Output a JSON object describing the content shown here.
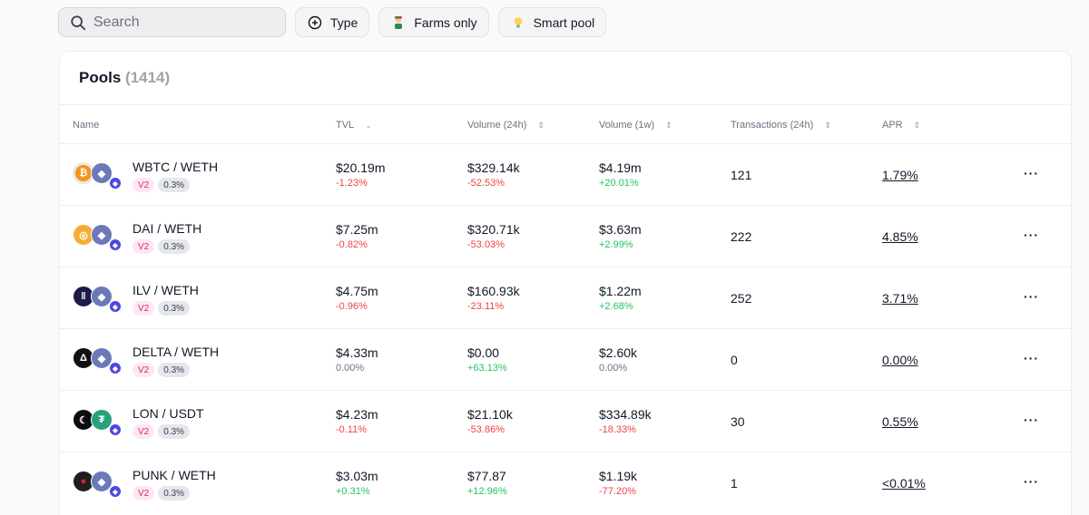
{
  "search": {
    "placeholder": "Search",
    "value": ""
  },
  "filters": [
    {
      "label": "Type",
      "icon": "plus-circle-icon"
    },
    {
      "label": "Farms only",
      "icon": "farmer-icon"
    },
    {
      "label": "Smart pool",
      "icon": "lightbulb-icon"
    }
  ],
  "pools": {
    "title": "Pools",
    "count": "(1414)",
    "columns": {
      "name": "Name",
      "tvl": "TVL",
      "vol24": "Volume (24h)",
      "vol1w": "Volume (1w)",
      "tx": "Transactions (24h)",
      "apr": "APR"
    },
    "rows": [
      {
        "name": "WBTC / WETH",
        "version": "V2",
        "fee": "0.3%",
        "token_a_icon": "wbtc-icon",
        "tvl": "$20.19m",
        "tvl_change": "-1.23%",
        "vol24": "$329.14k",
        "vol24_change": "-52.53%",
        "vol1w": "$4.19m",
        "vol1w_change": "+20.01%",
        "tx": "121",
        "apr": "1.79%"
      },
      {
        "name": "DAI / WETH",
        "version": "V2",
        "fee": "0.3%",
        "token_a_icon": "dai-icon",
        "tvl": "$7.25m",
        "tvl_change": "-0.82%",
        "vol24": "$320.71k",
        "vol24_change": "-53.03%",
        "vol1w": "$3.63m",
        "vol1w_change": "+2.99%",
        "tx": "222",
        "apr": "4.85%"
      },
      {
        "name": "ILV / WETH",
        "version": "V2",
        "fee": "0.3%",
        "token_a_icon": "ilv-icon",
        "tvl": "$4.75m",
        "tvl_change": "-0.96%",
        "vol24": "$160.93k",
        "vol24_change": "-23.11%",
        "vol1w": "$1.22m",
        "vol1w_change": "+2.68%",
        "tx": "252",
        "apr": "3.71%"
      },
      {
        "name": "DELTA / WETH",
        "version": "V2",
        "fee": "0.3%",
        "token_a_icon": "delta-icon",
        "tvl": "$4.33m",
        "tvl_change": "0.00%",
        "vol24": "$0.00",
        "vol24_change": "+63.13%",
        "vol1w": "$2.60k",
        "vol1w_change": "0.00%",
        "tx": "0",
        "apr": "0.00%"
      },
      {
        "name": "LON / USDT",
        "version": "V2",
        "fee": "0.3%",
        "token_a_icon": "lon-icon",
        "tvl": "$4.23m",
        "tvl_change": "-0.11%",
        "vol24": "$21.10k",
        "vol24_change": "-53.86%",
        "vol1w": "$334.89k",
        "vol1w_change": "-18.33%",
        "tx": "30",
        "apr": "0.55%"
      },
      {
        "name": "PUNK / WETH",
        "version": "V2",
        "fee": "0.3%",
        "token_a_icon": "punk-icon",
        "tvl": "$3.03m",
        "tvl_change": "+0.31%",
        "vol24": "$77.87",
        "vol24_change": "+12.96%",
        "vol1w": "$1.19k",
        "vol1w_change": "-77.20%",
        "tx": "1",
        "apr": "<0.01%"
      }
    ]
  },
  "colors": {
    "negative": "#ef4444",
    "positive": "#22c55e",
    "neutral": "#6b7280",
    "badge_version": "#db2777"
  }
}
